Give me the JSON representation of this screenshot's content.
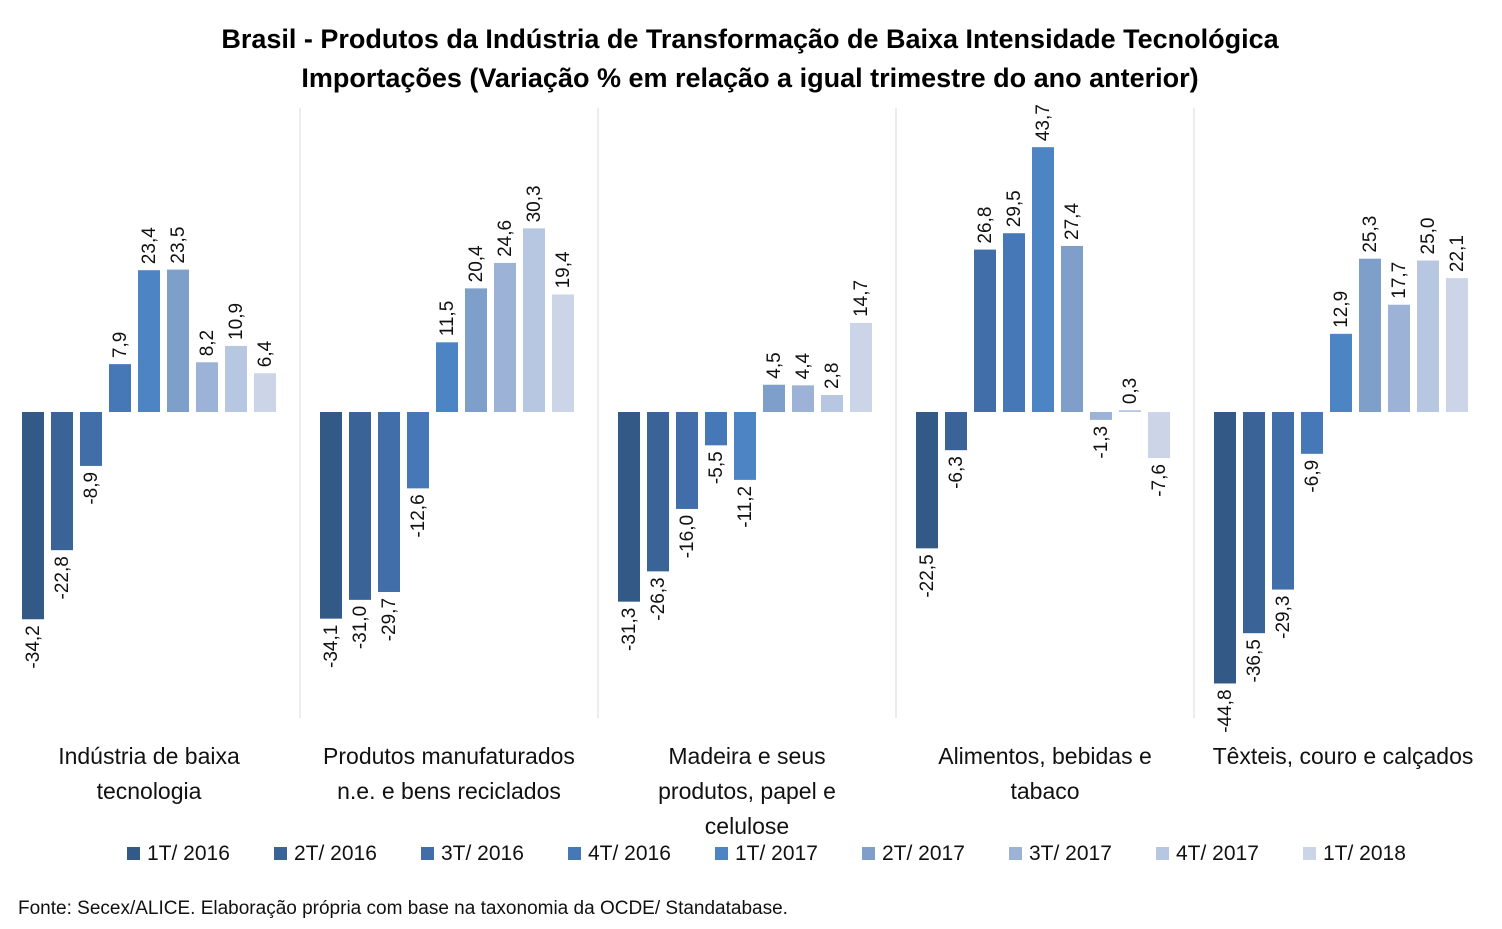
{
  "chart_data": {
    "type": "bar",
    "title": "Brasil - Produtos da Indústria de Transformação de Baixa Intensidade Tecnológica",
    "subtitle": "Importações (Variação % em relação a igual trimestre do ano anterior)",
    "categories": [
      [
        "Indústria de baixa",
        "tecnologia"
      ],
      [
        "Produtos manufaturados",
        "n.e. e bens reciclados"
      ],
      [
        "Madeira e seus",
        "produtos, papel e",
        "celulose"
      ],
      [
        "Alimentos, bebidas e",
        "tabaco"
      ],
      [
        "Têxteis, couro e calçados"
      ]
    ],
    "series": [
      {
        "name": "1T/ 2016",
        "color": "#335a87",
        "values": [
          -34.2,
          -34.1,
          -31.3,
          -22.5,
          -44.8
        ]
      },
      {
        "name": "2T/ 2016",
        "color": "#3a6498",
        "values": [
          -22.8,
          -31.0,
          -26.3,
          -6.3,
          -36.5
        ]
      },
      {
        "name": "3T/ 2016",
        "color": "#416ea8",
        "values": [
          -8.9,
          -29.7,
          -16.0,
          26.8,
          -29.3
        ]
      },
      {
        "name": "4T/ 2016",
        "color": "#4677b6",
        "values": [
          7.9,
          -12.6,
          -5.5,
          29.5,
          -6.9
        ]
      },
      {
        "name": "1T/ 2017",
        "color": "#4c84c4",
        "values": [
          23.4,
          11.5,
          -11.2,
          43.7,
          12.9
        ]
      },
      {
        "name": "2T/ 2017",
        "color": "#7f9fcb",
        "values": [
          23.5,
          20.4,
          4.5,
          27.4,
          25.3
        ]
      },
      {
        "name": "3T/ 2017",
        "color": "#9cb2d7",
        "values": [
          8.2,
          24.6,
          4.4,
          -1.3,
          17.7
        ]
      },
      {
        "name": "4T/ 2017",
        "color": "#b7c6e1",
        "values": [
          10.9,
          30.3,
          2.8,
          0.3,
          25.0
        ]
      },
      {
        "name": "1T/ 2018",
        "color": "#ccd5e8",
        "values": [
          6.4,
          19.4,
          14.7,
          -7.6,
          22.1
        ]
      }
    ],
    "ylim": [
      -50,
      50
    ],
    "grid": false,
    "legend_position": "bottom",
    "source": "Fonte: Secex/ALICE. Elaboração própria com base na taxonomia da OCDE/ Standatabase."
  }
}
